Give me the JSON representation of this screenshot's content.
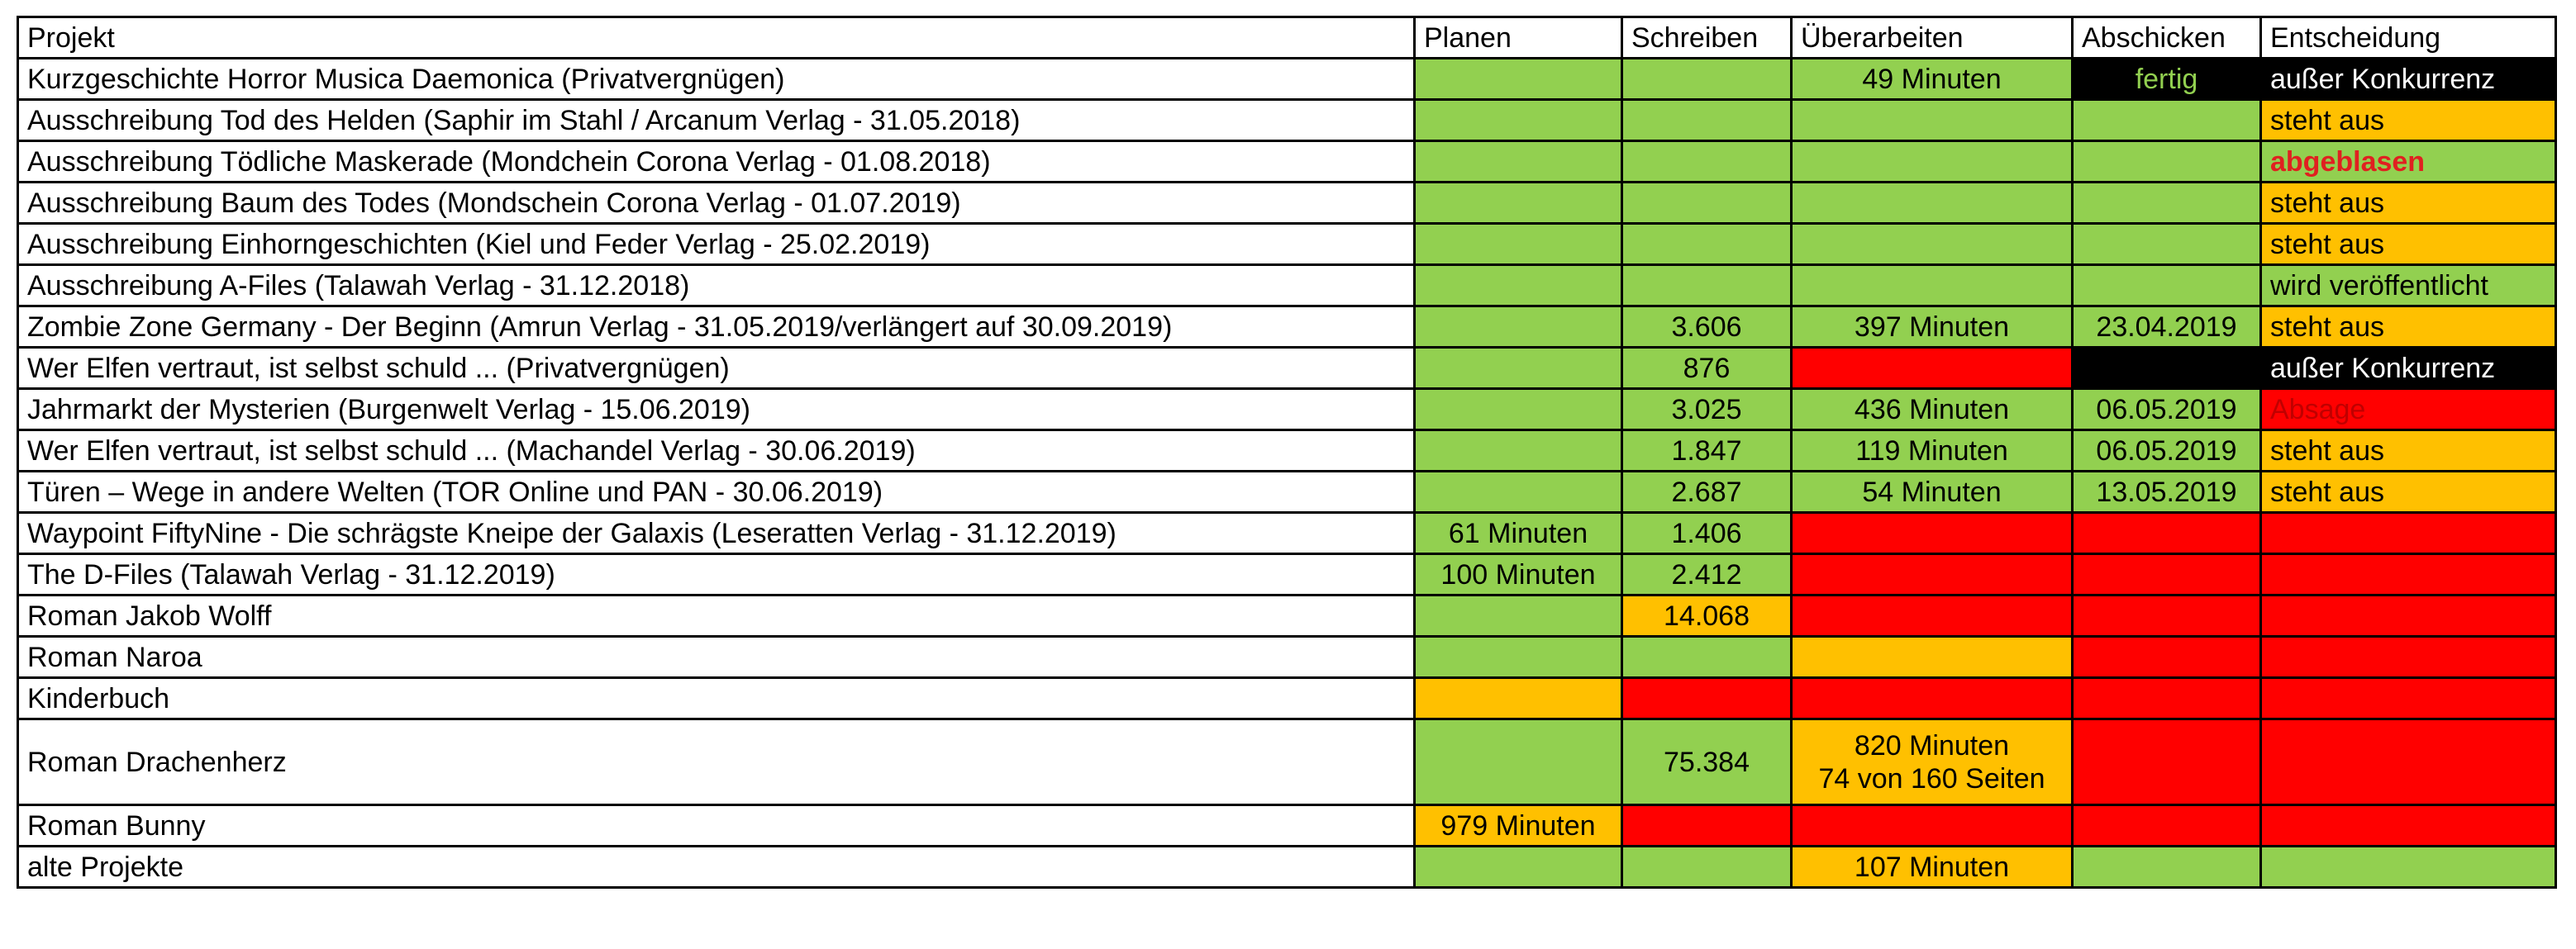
{
  "columns": [
    "Projekt",
    "Planen",
    "Schreiben",
    "Überarbeiten",
    "Abschicken",
    "Entscheidung"
  ],
  "rows": [
    {
      "projekt": "Kurzgeschichte Horror Musica Daemonica (Privatvergnügen)",
      "cells": [
        {
          "text": "",
          "fill": "green"
        },
        {
          "text": "",
          "fill": "green"
        },
        {
          "text": "49 Minuten",
          "fill": "green"
        },
        {
          "text": "fertig",
          "fill": "black",
          "text_color": "green"
        },
        {
          "text": "außer Konkurrenz",
          "fill": "black",
          "text_color": "white",
          "align": "left"
        }
      ]
    },
    {
      "projekt": "Ausschreibung Tod des Helden (Saphir im Stahl / Arcanum Verlag - 31.05.2018)",
      "cells": [
        {
          "text": "",
          "fill": "green"
        },
        {
          "text": "",
          "fill": "green"
        },
        {
          "text": "",
          "fill": "green"
        },
        {
          "text": "",
          "fill": "green"
        },
        {
          "text": "steht aus",
          "fill": "orange",
          "align": "left"
        }
      ]
    },
    {
      "projekt": "Ausschreibung Tödliche Maskerade (Mondchein Corona Verlag - 01.08.2018)",
      "cells": [
        {
          "text": "",
          "fill": "green"
        },
        {
          "text": "",
          "fill": "green"
        },
        {
          "text": "",
          "fill": "green"
        },
        {
          "text": "",
          "fill": "green"
        },
        {
          "text": "abgeblasen",
          "fill": "green",
          "text_color": "bold-red",
          "align": "left"
        }
      ]
    },
    {
      "projekt": "Ausschreibung Baum des Todes (Mondschein Corona Verlag - 01.07.2019)",
      "cells": [
        {
          "text": "",
          "fill": "green"
        },
        {
          "text": "",
          "fill": "green"
        },
        {
          "text": "",
          "fill": "green"
        },
        {
          "text": "",
          "fill": "green"
        },
        {
          "text": "steht aus",
          "fill": "orange",
          "align": "left"
        }
      ]
    },
    {
      "projekt": "Ausschreibung Einhorngeschichten (Kiel und Feder Verlag - 25.02.2019)",
      "cells": [
        {
          "text": "",
          "fill": "green"
        },
        {
          "text": "",
          "fill": "green"
        },
        {
          "text": "",
          "fill": "green"
        },
        {
          "text": "",
          "fill": "green"
        },
        {
          "text": "steht aus",
          "fill": "orange",
          "align": "left"
        }
      ]
    },
    {
      "projekt": "Ausschreibung A-Files (Talawah Verlag - 31.12.2018)",
      "cells": [
        {
          "text": "",
          "fill": "green"
        },
        {
          "text": "",
          "fill": "green"
        },
        {
          "text": "",
          "fill": "green"
        },
        {
          "text": "",
          "fill": "green"
        },
        {
          "text": "wird veröffentlicht",
          "fill": "green",
          "align": "left"
        }
      ]
    },
    {
      "projekt": "Zombie Zone Germany - Der Beginn (Amrun Verlag - 31.05.2019/verlängert auf 30.09.2019)",
      "cells": [
        {
          "text": "",
          "fill": "green"
        },
        {
          "text": "3.606",
          "fill": "green"
        },
        {
          "text": "397 Minuten",
          "fill": "green"
        },
        {
          "text": "23.04.2019",
          "fill": "green"
        },
        {
          "text": "steht aus",
          "fill": "orange",
          "align": "left"
        }
      ]
    },
    {
      "projekt": "Wer Elfen vertraut, ist selbst schuld ... (Privatvergnügen)",
      "cells": [
        {
          "text": "",
          "fill": "green"
        },
        {
          "text": "876",
          "fill": "green"
        },
        {
          "text": "",
          "fill": "red"
        },
        {
          "text": "",
          "fill": "black"
        },
        {
          "text": "außer Konkurrenz",
          "fill": "black",
          "text_color": "white",
          "align": "left"
        }
      ]
    },
    {
      "projekt": "Jahrmarkt der Mysterien (Burgenwelt Verlag - 15.06.2019)",
      "cells": [
        {
          "text": "",
          "fill": "green"
        },
        {
          "text": "3.025",
          "fill": "green"
        },
        {
          "text": "436 Minuten",
          "fill": "green"
        },
        {
          "text": "06.05.2019",
          "fill": "green"
        },
        {
          "text": "Absage",
          "fill": "red",
          "text_color": "dark-red",
          "align": "left"
        }
      ]
    },
    {
      "projekt": "Wer Elfen vertraut, ist selbst schuld ... (Machandel Verlag - 30.06.2019)",
      "cells": [
        {
          "text": "",
          "fill": "green"
        },
        {
          "text": "1.847",
          "fill": "green"
        },
        {
          "text": "119 Minuten",
          "fill": "green"
        },
        {
          "text": "06.05.2019",
          "fill": "green"
        },
        {
          "text": "steht aus",
          "fill": "orange",
          "align": "left"
        }
      ]
    },
    {
      "projekt": "Türen – Wege in andere Welten (TOR Online und PAN - 30.06.2019)",
      "cells": [
        {
          "text": "",
          "fill": "green"
        },
        {
          "text": "2.687",
          "fill": "green"
        },
        {
          "text": "54 Minuten",
          "fill": "green"
        },
        {
          "text": "13.05.2019",
          "fill": "green"
        },
        {
          "text": "steht aus",
          "fill": "orange",
          "align": "left"
        }
      ]
    },
    {
      "projekt": "Waypoint FiftyNine - Die schrägste Kneipe der Galaxis (Leseratten Verlag - 31.12.2019)",
      "cells": [
        {
          "text": "61 Minuten",
          "fill": "green"
        },
        {
          "text": "1.406",
          "fill": "green"
        },
        {
          "text": "",
          "fill": "red"
        },
        {
          "text": "",
          "fill": "red"
        },
        {
          "text": "",
          "fill": "red"
        }
      ]
    },
    {
      "projekt": "The D-Files (Talawah Verlag - 31.12.2019)",
      "cells": [
        {
          "text": "100 Minuten",
          "fill": "green"
        },
        {
          "text": "2.412",
          "fill": "green"
        },
        {
          "text": "",
          "fill": "red"
        },
        {
          "text": "",
          "fill": "red"
        },
        {
          "text": "",
          "fill": "red"
        }
      ]
    },
    {
      "projekt": "Roman Jakob Wolff",
      "cells": [
        {
          "text": "",
          "fill": "green"
        },
        {
          "text": "14.068",
          "fill": "orange"
        },
        {
          "text": "",
          "fill": "red"
        },
        {
          "text": "",
          "fill": "red"
        },
        {
          "text": "",
          "fill": "red"
        }
      ]
    },
    {
      "projekt": "Roman Naroa",
      "cells": [
        {
          "text": "",
          "fill": "green"
        },
        {
          "text": "",
          "fill": "green"
        },
        {
          "text": "",
          "fill": "orange"
        },
        {
          "text": "",
          "fill": "red"
        },
        {
          "text": "",
          "fill": "red"
        }
      ]
    },
    {
      "projekt": "Kinderbuch",
      "cells": [
        {
          "text": "",
          "fill": "orange"
        },
        {
          "text": "",
          "fill": "red"
        },
        {
          "text": "",
          "fill": "red"
        },
        {
          "text": "",
          "fill": "red"
        },
        {
          "text": "",
          "fill": "red"
        }
      ]
    },
    {
      "projekt": "Roman Drachenherz",
      "tall": true,
      "cells": [
        {
          "text": "",
          "fill": "green"
        },
        {
          "text": "75.384",
          "fill": "green"
        },
        {
          "text": "820 Minuten",
          "text2": "74 von 160 Seiten",
          "fill": "orange"
        },
        {
          "text": "",
          "fill": "red"
        },
        {
          "text": "",
          "fill": "red"
        }
      ]
    },
    {
      "projekt": "Roman Bunny",
      "cells": [
        {
          "text": "979 Minuten",
          "fill": "orange"
        },
        {
          "text": "",
          "fill": "red"
        },
        {
          "text": "",
          "fill": "red"
        },
        {
          "text": "",
          "fill": "red"
        },
        {
          "text": "",
          "fill": "red"
        }
      ]
    },
    {
      "projekt": "alte Projekte",
      "cells": [
        {
          "text": "",
          "fill": "green"
        },
        {
          "text": "",
          "fill": "green"
        },
        {
          "text": "107 Minuten",
          "fill": "orange"
        },
        {
          "text": "",
          "fill": "green"
        },
        {
          "text": "",
          "fill": "green"
        }
      ]
    }
  ],
  "colors": {
    "green": "#92d050",
    "orange": "#ffc000",
    "red": "#ff0000",
    "black": "#000000",
    "dark_red_text": "#c00000"
  }
}
